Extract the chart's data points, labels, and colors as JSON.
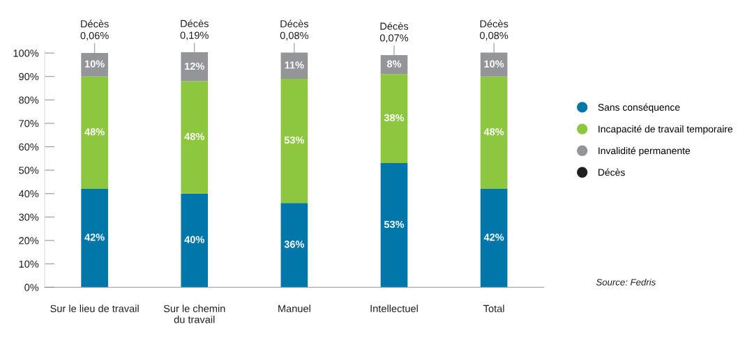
{
  "chart_data": {
    "type": "bar",
    "stacked": true,
    "categories": [
      "Sur le lieu de travail",
      "Sur le chemin\ndu travail",
      "Manuel",
      "Intellectuel",
      "Total"
    ],
    "series": [
      {
        "name": "Sans conséquence",
        "color": "#0077a8",
        "values": [
          42,
          40,
          36,
          53,
          42
        ],
        "value_labels": [
          "42%",
          "40%",
          "36%",
          "53%",
          "42%"
        ]
      },
      {
        "name": "Incapacité de travail temporaire",
        "color": "#8dc63f",
        "values": [
          48,
          48,
          53,
          38,
          48
        ],
        "value_labels": [
          "48%",
          "48%",
          "53%",
          "38%",
          "48%"
        ]
      },
      {
        "name": "Invalidité permanente",
        "color": "#939598",
        "values": [
          10,
          12,
          11,
          8,
          10
        ],
        "value_labels": [
          "10%",
          "12%",
          "11%",
          "8%",
          "10%"
        ]
      },
      {
        "name": "Décès",
        "color": "#231f20",
        "values": [
          0.06,
          0.19,
          0.08,
          0.07,
          0.08
        ],
        "value_labels": [
          "Décès\n0,06%",
          "Décès\n0,19%",
          "Décès\n0,08%",
          "Décès\n0,07%",
          "Décès\n0,08%"
        ]
      }
    ],
    "ylim": [
      0,
      101
    ],
    "yticks": [
      {
        "value": 0,
        "label": "0%"
      },
      {
        "value": 10,
        "label": "10%"
      },
      {
        "value": 20,
        "label": "20%"
      },
      {
        "value": 30,
        "label": "30%"
      },
      {
        "value": 40,
        "label": "40%"
      },
      {
        "value": 50,
        "label": "50%"
      },
      {
        "value": 60,
        "label": "60%"
      },
      {
        "value": 70,
        "label": "70%"
      },
      {
        "value": 80,
        "label": "80%"
      },
      {
        "value": 90,
        "label": "90%"
      },
      {
        "value": 100,
        "label": "100%"
      }
    ],
    "grid": false,
    "legend": "right",
    "annotations": [
      "Source: Fedris"
    ]
  }
}
